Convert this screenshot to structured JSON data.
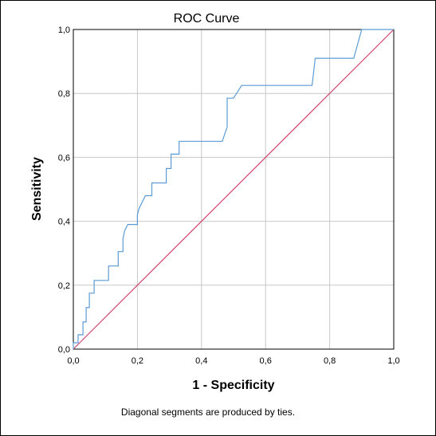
{
  "chart_data": {
    "type": "line",
    "title": "ROC Curve",
    "xlabel": "1 - Specificity",
    "ylabel": "Sensitivity",
    "xlim": [
      0,
      1
    ],
    "ylim": [
      0,
      1
    ],
    "xticks": [
      "0,0",
      "0,2",
      "0,4",
      "0,6",
      "0,8",
      "1,0"
    ],
    "yticks": [
      "0,0",
      "0,2",
      "0,4",
      "0,6",
      "0,8",
      "1,0"
    ],
    "grid": true,
    "footnote": "Diagonal segments are produced by ties.",
    "colors": {
      "roc": "#5b9bd5",
      "reference": "#d0456b",
      "grid": "#c8c8c8"
    },
    "series": [
      {
        "x": [
          0,
          0,
          0.015,
          0.015,
          0.03,
          0.03,
          0.04,
          0.04,
          0.05,
          0.05,
          0.065,
          0.065,
          0.11,
          0.11,
          0.14,
          0.14,
          0.155,
          0.155,
          0.16,
          0.17,
          0.2,
          0.2,
          0.205,
          0.225,
          0.245,
          0.245,
          0.29,
          0.29,
          0.305,
          0.305,
          0.33,
          0.33,
          0.465,
          0.475,
          0.48,
          0.48,
          0.5,
          0.525,
          0.745,
          0.755,
          0.875,
          0.9,
          1.0
        ],
        "y": [
          0,
          0.02,
          0.02,
          0.045,
          0.045,
          0.085,
          0.085,
          0.13,
          0.13,
          0.175,
          0.175,
          0.215,
          0.215,
          0.26,
          0.26,
          0.305,
          0.305,
          0.345,
          0.37,
          0.39,
          0.39,
          0.42,
          0.44,
          0.48,
          0.48,
          0.52,
          0.52,
          0.565,
          0.565,
          0.61,
          0.61,
          0.65,
          0.65,
          0.68,
          0.695,
          0.785,
          0.785,
          0.825,
          0.825,
          0.91,
          0.91,
          1.0,
          1.0
        ]
      },
      {
        "x": [
          0,
          1
        ],
        "y": [
          0,
          1
        ]
      }
    ]
  }
}
